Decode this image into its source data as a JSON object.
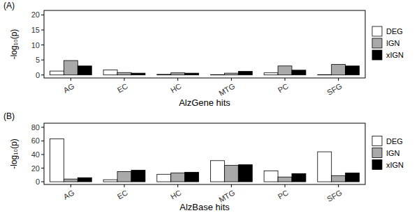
{
  "chart_data": [
    {
      "type": "bar",
      "title": "(A)",
      "x_label": "AlzGene hits",
      "y_label": "-log₁₀(p)",
      "categories": [
        "AG",
        "EC",
        "HC",
        "MTG",
        "PC",
        "SFG"
      ],
      "series": [
        {
          "name": "DEG",
          "color": "#ffffff",
          "values": [
            1.3,
            1.7,
            0.2,
            0.1,
            0.7,
            0.1
          ]
        },
        {
          "name": "IGN",
          "color": "#a9a9a9",
          "values": [
            4.8,
            0.8,
            0.7,
            0.6,
            3.0,
            3.5
          ]
        },
        {
          "name": "xIGN",
          "color": "#000000",
          "values": [
            3.0,
            0.6,
            0.6,
            1.2,
            1.6,
            3.0
          ]
        }
      ],
      "ylim": [
        -1,
        21.5
      ],
      "yticks": [
        0,
        5,
        10,
        15,
        20
      ],
      "grid": false,
      "legend": "right"
    },
    {
      "type": "bar",
      "title": "(B)",
      "x_label": "AlzBase hits",
      "y_label": "-log₁₀(p)",
      "categories": [
        "AG",
        "EC",
        "HC",
        "MTG",
        "PC",
        "SFG"
      ],
      "series": [
        {
          "name": "DEG",
          "color": "#ffffff",
          "values": [
            63,
            3,
            11,
            31,
            16,
            44
          ]
        },
        {
          "name": "IGN",
          "color": "#a9a9a9",
          "values": [
            4,
            15,
            13,
            24,
            7,
            9
          ]
        },
        {
          "name": "xIGN",
          "color": "#000000",
          "values": [
            6,
            17,
            14,
            25,
            12,
            13
          ]
        }
      ],
      "ylim": [
        -4,
        86
      ],
      "yticks": [
        0,
        20,
        40,
        60,
        80
      ],
      "grid": false,
      "legend": "right"
    }
  ]
}
